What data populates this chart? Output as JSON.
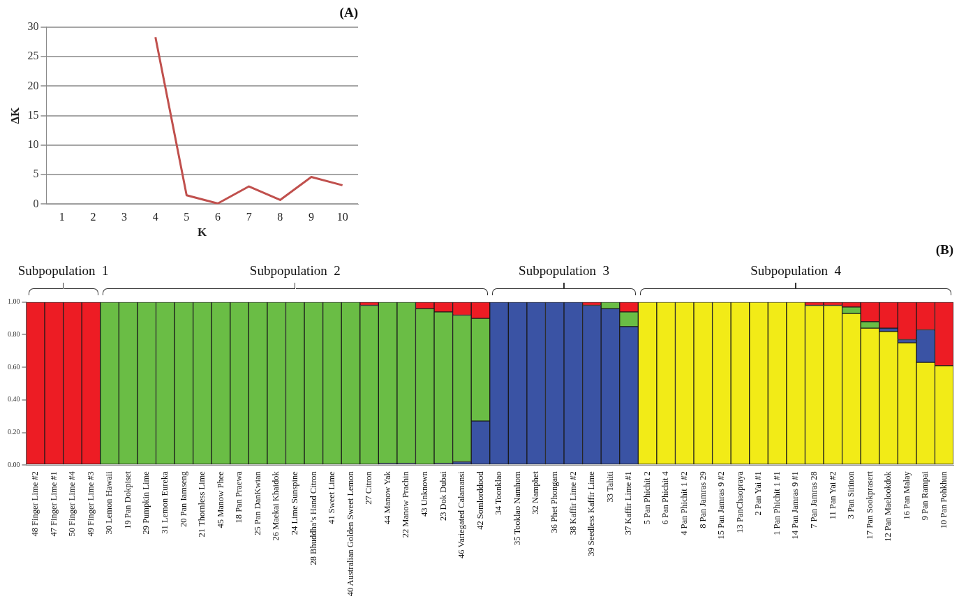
{
  "chart_data": [
    {
      "type": "line",
      "title": "(A)",
      "xlabel": "K",
      "ylabel": "ΔK",
      "categories": [
        "1",
        "2",
        "3",
        "4",
        "5",
        "6",
        "7",
        "8",
        "9",
        "10"
      ],
      "series": [
        {
          "color": "#c0504d",
          "values": [
            null,
            null,
            null,
            28.3,
            1.5,
            0.1,
            3.0,
            0.7,
            4.6,
            3.2
          ]
        }
      ],
      "ylim": [
        0,
        30
      ],
      "yticks": [
        0,
        5,
        10,
        15,
        20,
        25,
        30
      ],
      "grid": "y",
      "legend": false,
      "marker": "none"
    },
    {
      "type": "bar",
      "stacked": true,
      "title": "(B)",
      "legend": false,
      "grid": false,
      "categories": [
        "48 Finger Lime #2",
        "47 Finger Lime #1",
        "50 Finger Lime #4",
        "49 Finger Lime #3",
        "30 Lemon Hawaii",
        "19 Pan Dokpiset",
        "29 Pumpkin Lime",
        "31 Lemon Eureka",
        "20 Pan Iamseng",
        "21 Thornless Lime",
        "45 Manow Phee",
        "18 Pan Praewa",
        "25 Pan DanKwian",
        "26 Maekai Khaidok",
        "24 Lime Sunspine",
        "28 Bhuddha’s Hand Citron",
        "41 Sweet Lime",
        "40 Australian Golden Sweet Lemon",
        "27 Citron",
        "44 Manow Yak",
        "22 Manow Prachin",
        "43 Unknown",
        "23 Dok Dubai",
        "46 Variegated Calamansi",
        "42 Somlorddood",
        "34 Toonklao",
        "35 Tooklao Namhom",
        "32 Namphet",
        "36 Phet Phongam",
        "38 Kaffir Lime #2",
        "39 Seedless Kaffir Lime",
        "33 Tahiti",
        "37 Kaffir Lime #1",
        "5 Pan Phichit 2",
        "6 Pan Phichit 4",
        "4 Pan Phichit 1 #2",
        "8 Pan Jamras 29",
        "15 Pan Jamras 9 #2",
        "13 PanChaopraya",
        "2 Pan Yai #1",
        "1 Pan Phichit 1 #1",
        "14 Pan Jamras 9 #1",
        "7 Pan Jamras 28",
        "11 Pan Yai #2",
        "3 Pan Sirinon",
        "17 Pan Sookprasert",
        "12 Pan Maelookdok",
        "16 Pan Malay",
        "9 Pan Rampai",
        "10 Pan Pohkhun"
      ],
      "series": [
        {
          "color": "#f2eb17",
          "values": [
            0,
            0,
            0,
            0,
            0,
            0,
            0,
            0,
            0,
            0,
            0,
            0,
            0,
            0,
            0,
            0,
            0,
            0,
            0,
            0,
            0,
            0,
            0,
            0,
            0,
            0,
            0,
            0,
            0,
            0,
            0,
            0,
            0,
            1,
            1,
            1,
            1,
            1,
            1,
            1,
            1,
            1,
            0.98,
            0.98,
            0.93,
            0.84,
            0.82,
            0.75,
            0.63,
            0.61
          ]
        },
        {
          "color": "#3a53a4",
          "values": [
            0,
            0,
            0,
            0,
            0,
            0,
            0,
            0,
            0,
            0,
            0,
            0,
            0,
            0,
            0,
            0,
            0,
            0,
            0,
            0.01,
            0.01,
            0,
            0.01,
            0.02,
            0.27,
            1,
            1,
            1,
            1,
            1,
            0.98,
            0.96,
            0.85,
            0,
            0,
            0,
            0,
            0,
            0,
            0,
            0,
            0,
            0,
            0,
            0,
            0,
            0.02,
            0.02,
            0.2,
            0
          ]
        },
        {
          "color": "#6abd45",
          "values": [
            0,
            0,
            0,
            0,
            1,
            1,
            1,
            1,
            1,
            1,
            1,
            1,
            1,
            1,
            1,
            1,
            1,
            1,
            0.98,
            0.99,
            0.99,
            0.96,
            0.93,
            0.9,
            0.63,
            0,
            0,
            0,
            0,
            0,
            0,
            0.04,
            0.09,
            0,
            0,
            0,
            0,
            0,
            0,
            0,
            0,
            0,
            0,
            0,
            0.04,
            0.04,
            0,
            0,
            0,
            0
          ]
        },
        {
          "color": "#ed1c24",
          "values": [
            1,
            1,
            1,
            1,
            0,
            0,
            0,
            0,
            0,
            0,
            0,
            0,
            0,
            0,
            0,
            0,
            0,
            0,
            0.02,
            0,
            0,
            0.04,
            0.06,
            0.08,
            0.1,
            0,
            0,
            0,
            0,
            0,
            0.02,
            0,
            0.06,
            0,
            0,
            0,
            0,
            0,
            0,
            0,
            0,
            0,
            0.02,
            0.02,
            0.03,
            0.12,
            0.16,
            0.23,
            0.17,
            0.39
          ]
        }
      ],
      "ylim": [
        0,
        1
      ],
      "yticks": [
        {
          "value": 0,
          "label": "0.00"
        },
        {
          "value": 0.2,
          "label": "0.20"
        },
        {
          "value": 0.4,
          "label": "0.40"
        },
        {
          "value": 0.6,
          "label": "0.60"
        },
        {
          "value": 0.8,
          "label": "0.80"
        },
        {
          "value": 1,
          "label": "1.00"
        }
      ],
      "annotations": [
        "Subpopulation  1",
        "Subpopulation  2",
        "Subpopulation  3",
        "Subpopulation  4"
      ]
    }
  ]
}
